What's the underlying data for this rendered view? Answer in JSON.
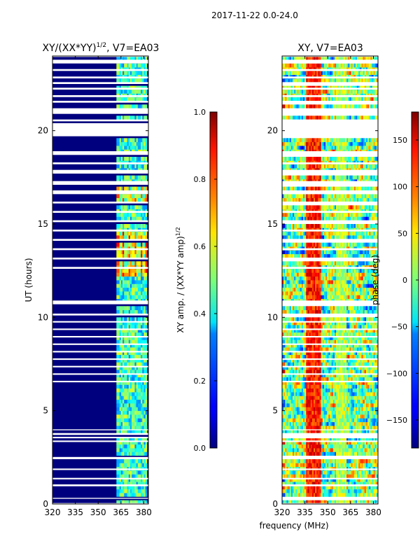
{
  "figure": {
    "suptitle": "2017-11-22 0.0-24.0",
    "shared_xlabel": "frequency (MHz)"
  },
  "chart_data": [
    {
      "type": "heatmap",
      "title_main": "XY/(XX*YY)",
      "title_exp": "1/2",
      "title_tail": ", V7=EA03",
      "xlabel": "",
      "ylabel": "UT (hours)",
      "xlim": [
        320,
        383
      ],
      "ylim": [
        0,
        24
      ],
      "x_ticks": [
        320,
        335,
        350,
        365,
        380
      ],
      "y_ticks": [
        0,
        5,
        10,
        15,
        20
      ],
      "band_edges_mhz": [
        360,
        362,
        364,
        365,
        366,
        367,
        369,
        370,
        371,
        372,
        374,
        375,
        376,
        378,
        379,
        380,
        381,
        382
      ],
      "description_values": "normalized cross-correlation amplitude, near 0 below 362 MHz, 0.2-0.9 in channels 362-382 MHz",
      "colorbar": {
        "label_main": "XY amp. / (XX*YY amp)",
        "label_exp": "1/2",
        "range": [
          0.0,
          1.0
        ],
        "ticks": [
          "0.0",
          "0.2",
          "0.4",
          "0.6",
          "0.8",
          "1.0"
        ]
      }
    },
    {
      "type": "heatmap",
      "title_main": "XY, V7=EA03",
      "xlabel": "",
      "ylabel": "",
      "xlim": [
        320,
        383
      ],
      "ylim": [
        0,
        24
      ],
      "x_ticks": [
        320,
        335,
        350,
        365,
        380
      ],
      "y_ticks": [
        0,
        5,
        10,
        15,
        20
      ],
      "description_values": "cross-correlation phase in degrees, noisy over full band",
      "colorbar": {
        "label": "phase (deg)",
        "range": [
          -180,
          180
        ],
        "ticks": [
          "−150",
          "−100",
          "−50",
          "0",
          "50",
          "100",
          "150"
        ]
      }
    }
  ],
  "flag_gaps_ut": [
    [
      0.0,
      0.05
    ],
    [
      0.28,
      0.33
    ],
    [
      0.95,
      1.05
    ],
    [
      1.32,
      1.4
    ],
    [
      1.82,
      1.9
    ],
    [
      2.4,
      2.52
    ],
    [
      3.32,
      3.4
    ],
    [
      3.52,
      3.6
    ],
    [
      3.7,
      3.8
    ],
    [
      3.95,
      4.0
    ],
    [
      6.52,
      6.6
    ],
    [
      6.92,
      7.0
    ],
    [
      7.32,
      7.4
    ],
    [
      7.72,
      7.8
    ],
    [
      8.12,
      8.2
    ],
    [
      8.52,
      8.6
    ],
    [
      8.92,
      9.0
    ],
    [
      9.32,
      9.4
    ],
    [
      9.72,
      9.8
    ],
    [
      10.1,
      10.2
    ],
    [
      10.7,
      10.9
    ],
    [
      12.6,
      12.7
    ],
    [
      13.1,
      13.2
    ],
    [
      13.6,
      13.7
    ],
    [
      14.1,
      14.2
    ],
    [
      14.6,
      14.7
    ],
    [
      15.1,
      15.2
    ],
    [
      15.6,
      15.7
    ],
    [
      16.1,
      16.2
    ],
    [
      16.6,
      16.8
    ],
    [
      17.1,
      17.3
    ],
    [
      17.7,
      17.9
    ],
    [
      18.2,
      18.3
    ],
    [
      18.7,
      18.9
    ],
    [
      19.7,
      20.4
    ],
    [
      20.5,
      20.6
    ],
    [
      20.9,
      21.2
    ],
    [
      21.5,
      21.6
    ],
    [
      21.8,
      21.9
    ],
    [
      22.2,
      22.3
    ],
    [
      22.5,
      22.6
    ],
    [
      22.8,
      22.9
    ],
    [
      23.2,
      23.3
    ],
    [
      23.6,
      23.8
    ],
    [
      23.95,
      24.0
    ]
  ]
}
